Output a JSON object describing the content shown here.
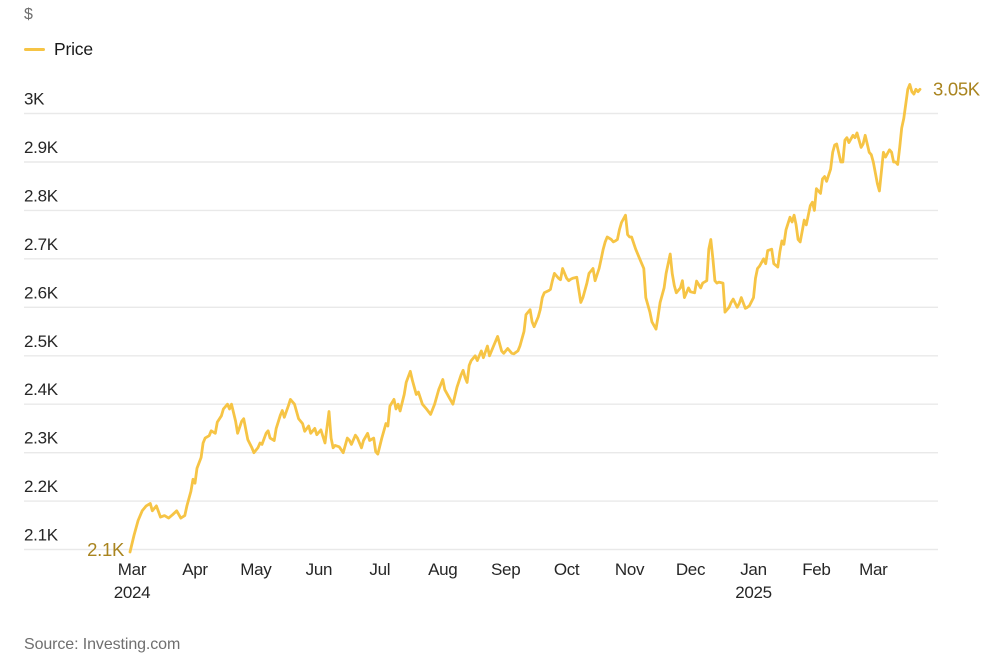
{
  "header": {
    "unit_label": "$"
  },
  "footer": {
    "source": "Source: Investing.com"
  },
  "chart_data": {
    "type": "line",
    "title": "",
    "series_name": "Price",
    "unit": "$ thousands (K)",
    "line_color": "#F6C445",
    "annotation_color": "#a9841f",
    "grid": "horizontal",
    "legend_position": "top-left",
    "start_annotation": "2.1K",
    "end_annotation": "3.05K",
    "xlim": [
      "2024-02-29",
      "2025-03-24"
    ],
    "ylim_gridlines": [
      2.1,
      3.0
    ],
    "y_ticks": [
      {
        "label": "3K",
        "value": 3.0
      },
      {
        "label": "2.9K",
        "value": 2.9
      },
      {
        "label": "2.8K",
        "value": 2.8
      },
      {
        "label": "2.7K",
        "value": 2.7
      },
      {
        "label": "2.6K",
        "value": 2.6
      },
      {
        "label": "2.5K",
        "value": 2.5
      },
      {
        "label": "2.4K",
        "value": 2.4
      },
      {
        "label": "2.3K",
        "value": 2.3
      },
      {
        "label": "2.2K",
        "value": 2.2
      },
      {
        "label": "2.1K",
        "value": 2.1
      }
    ],
    "x_ticks": [
      {
        "label": "Mar",
        "year": "2024",
        "date": "2024-03-01"
      },
      {
        "label": "Apr",
        "date": "2024-04-01"
      },
      {
        "label": "May",
        "date": "2024-05-01"
      },
      {
        "label": "Jun",
        "date": "2024-06-01"
      },
      {
        "label": "Jul",
        "date": "2024-07-01"
      },
      {
        "label": "Aug",
        "date": "2024-08-01"
      },
      {
        "label": "Sep",
        "date": "2024-09-01"
      },
      {
        "label": "Oct",
        "date": "2024-10-01"
      },
      {
        "label": "Nov",
        "date": "2024-11-01"
      },
      {
        "label": "Dec",
        "date": "2024-12-01"
      },
      {
        "label": "Jan",
        "year": "2025",
        "date": "2025-01-01"
      },
      {
        "label": "Feb",
        "date": "2025-02-01"
      },
      {
        "label": "Mar",
        "date": "2025-03-01"
      }
    ],
    "points": [
      [
        "2024-02-29",
        2.095
      ],
      [
        "2024-03-02",
        2.13
      ],
      [
        "2024-03-04",
        2.16
      ],
      [
        "2024-03-06",
        2.18
      ],
      [
        "2024-03-08",
        2.19
      ],
      [
        "2024-03-10",
        2.195
      ],
      [
        "2024-03-11",
        2.18
      ],
      [
        "2024-03-13",
        2.19
      ],
      [
        "2024-03-15",
        2.167
      ],
      [
        "2024-03-17",
        2.17
      ],
      [
        "2024-03-19",
        2.165
      ],
      [
        "2024-03-21",
        2.172
      ],
      [
        "2024-03-23",
        2.18
      ],
      [
        "2024-03-25",
        2.165
      ],
      [
        "2024-03-27",
        2.17
      ],
      [
        "2024-03-28",
        2.19
      ],
      [
        "2024-03-30",
        2.22
      ],
      [
        "2024-03-31",
        2.245
      ],
      [
        "2024-04-01",
        2.237
      ],
      [
        "2024-04-02",
        2.268
      ],
      [
        "2024-04-04",
        2.29
      ],
      [
        "2024-04-05",
        2.32
      ],
      [
        "2024-04-06",
        2.33
      ],
      [
        "2024-04-08",
        2.335
      ],
      [
        "2024-04-09",
        2.345
      ],
      [
        "2024-04-11",
        2.34
      ],
      [
        "2024-04-12",
        2.363
      ],
      [
        "2024-04-14",
        2.376
      ],
      [
        "2024-04-15",
        2.39
      ],
      [
        "2024-04-17",
        2.4
      ],
      [
        "2024-04-18",
        2.39
      ],
      [
        "2024-04-19",
        2.4
      ],
      [
        "2024-04-21",
        2.365
      ],
      [
        "2024-04-22",
        2.34
      ],
      [
        "2024-04-24",
        2.365
      ],
      [
        "2024-04-25",
        2.37
      ],
      [
        "2024-04-27",
        2.327
      ],
      [
        "2024-04-29",
        2.31
      ],
      [
        "2024-04-30",
        2.3
      ],
      [
        "2024-05-02",
        2.31
      ],
      [
        "2024-05-03",
        2.32
      ],
      [
        "2024-05-04",
        2.317
      ],
      [
        "2024-05-06",
        2.34
      ],
      [
        "2024-05-07",
        2.345
      ],
      [
        "2024-05-08",
        2.33
      ],
      [
        "2024-05-10",
        2.325
      ],
      [
        "2024-05-11",
        2.35
      ],
      [
        "2024-05-13",
        2.377
      ],
      [
        "2024-05-14",
        2.387
      ],
      [
        "2024-05-15",
        2.373
      ],
      [
        "2024-05-17",
        2.397
      ],
      [
        "2024-05-18",
        2.41
      ],
      [
        "2024-05-20",
        2.4
      ],
      [
        "2024-05-22",
        2.37
      ],
      [
        "2024-05-24",
        2.36
      ],
      [
        "2024-05-25",
        2.344
      ],
      [
        "2024-05-27",
        2.355
      ],
      [
        "2024-05-28",
        2.34
      ],
      [
        "2024-05-30",
        2.35
      ],
      [
        "2024-05-31",
        2.337
      ],
      [
        "2024-06-02",
        2.347
      ],
      [
        "2024-06-04",
        2.32
      ],
      [
        "2024-06-06",
        2.385
      ],
      [
        "2024-06-07",
        2.33
      ],
      [
        "2024-06-08",
        2.31
      ],
      [
        "2024-06-09",
        2.315
      ],
      [
        "2024-06-11",
        2.312
      ],
      [
        "2024-06-13",
        2.3
      ],
      [
        "2024-06-15",
        2.33
      ],
      [
        "2024-06-16",
        2.326
      ],
      [
        "2024-06-17",
        2.317
      ],
      [
        "2024-06-19",
        2.336
      ],
      [
        "2024-06-20",
        2.33
      ],
      [
        "2024-06-22",
        2.31
      ],
      [
        "2024-06-23",
        2.325
      ],
      [
        "2024-06-25",
        2.34
      ],
      [
        "2024-06-26",
        2.325
      ],
      [
        "2024-06-28",
        2.33
      ],
      [
        "2024-06-29",
        2.302
      ],
      [
        "2024-06-30",
        2.297
      ],
      [
        "2024-07-02",
        2.33
      ],
      [
        "2024-07-03",
        2.345
      ],
      [
        "2024-07-04",
        2.36
      ],
      [
        "2024-07-05",
        2.355
      ],
      [
        "2024-07-06",
        2.396
      ],
      [
        "2024-07-08",
        2.41
      ],
      [
        "2024-07-09",
        2.39
      ],
      [
        "2024-07-10",
        2.4
      ],
      [
        "2024-07-11",
        2.386
      ],
      [
        "2024-07-13",
        2.42
      ],
      [
        "2024-07-14",
        2.445
      ],
      [
        "2024-07-16",
        2.468
      ],
      [
        "2024-07-17",
        2.45
      ],
      [
        "2024-07-19",
        2.42
      ],
      [
        "2024-07-20",
        2.425
      ],
      [
        "2024-07-22",
        2.4
      ],
      [
        "2024-07-24",
        2.39
      ],
      [
        "2024-07-26",
        2.379
      ],
      [
        "2024-07-28",
        2.4
      ],
      [
        "2024-07-30",
        2.43
      ],
      [
        "2024-08-01",
        2.451
      ],
      [
        "2024-08-02",
        2.43
      ],
      [
        "2024-08-04",
        2.415
      ],
      [
        "2024-08-06",
        2.4
      ],
      [
        "2024-08-08",
        2.435
      ],
      [
        "2024-08-10",
        2.46
      ],
      [
        "2024-08-11",
        2.47
      ],
      [
        "2024-08-12",
        2.455
      ],
      [
        "2024-08-13",
        2.445
      ],
      [
        "2024-08-14",
        2.48
      ],
      [
        "2024-08-15",
        2.49
      ],
      [
        "2024-08-17",
        2.5
      ],
      [
        "2024-08-18",
        2.49
      ],
      [
        "2024-08-20",
        2.51
      ],
      [
        "2024-08-21",
        2.496
      ],
      [
        "2024-08-23",
        2.52
      ],
      [
        "2024-08-24",
        2.5
      ],
      [
        "2024-08-26",
        2.52
      ],
      [
        "2024-08-27",
        2.53
      ],
      [
        "2024-08-28",
        2.54
      ],
      [
        "2024-08-30",
        2.51
      ],
      [
        "2024-08-31",
        2.505
      ],
      [
        "2024-09-02",
        2.515
      ],
      [
        "2024-09-04",
        2.505
      ],
      [
        "2024-09-05",
        2.504
      ],
      [
        "2024-09-07",
        2.51
      ],
      [
        "2024-09-08",
        2.52
      ],
      [
        "2024-09-10",
        2.55
      ],
      [
        "2024-09-11",
        2.585
      ],
      [
        "2024-09-13",
        2.595
      ],
      [
        "2024-09-14",
        2.57
      ],
      [
        "2024-09-15",
        2.56
      ],
      [
        "2024-09-17",
        2.58
      ],
      [
        "2024-09-18",
        2.595
      ],
      [
        "2024-09-19",
        2.62
      ],
      [
        "2024-09-20",
        2.63
      ],
      [
        "2024-09-22",
        2.634
      ],
      [
        "2024-09-23",
        2.637
      ],
      [
        "2024-09-24",
        2.655
      ],
      [
        "2024-09-25",
        2.67
      ],
      [
        "2024-09-27",
        2.66
      ],
      [
        "2024-09-28",
        2.657
      ],
      [
        "2024-09-29",
        2.68
      ],
      [
        "2024-10-01",
        2.66
      ],
      [
        "2024-10-02",
        2.655
      ],
      [
        "2024-10-03",
        2.658
      ],
      [
        "2024-10-04",
        2.66
      ],
      [
        "2024-10-06",
        2.662
      ],
      [
        "2024-10-08",
        2.61
      ],
      [
        "2024-10-09",
        2.62
      ],
      [
        "2024-10-11",
        2.65
      ],
      [
        "2024-10-12",
        2.67
      ],
      [
        "2024-10-13",
        2.675
      ],
      [
        "2024-10-14",
        2.68
      ],
      [
        "2024-10-15",
        2.655
      ],
      [
        "2024-10-17",
        2.68
      ],
      [
        "2024-10-18",
        2.7
      ],
      [
        "2024-10-19",
        2.72
      ],
      [
        "2024-10-20",
        2.735
      ],
      [
        "2024-10-21",
        2.745
      ],
      [
        "2024-10-23",
        2.74
      ],
      [
        "2024-10-24",
        2.735
      ],
      [
        "2024-10-25",
        2.737
      ],
      [
        "2024-10-26",
        2.74
      ],
      [
        "2024-10-27",
        2.76
      ],
      [
        "2024-10-28",
        2.775
      ],
      [
        "2024-10-30",
        2.79
      ],
      [
        "2024-10-31",
        2.75
      ],
      [
        "2024-11-01",
        2.745
      ],
      [
        "2024-11-02",
        2.745
      ],
      [
        "2024-11-04",
        2.72
      ],
      [
        "2024-11-06",
        2.7
      ],
      [
        "2024-11-08",
        2.68
      ],
      [
        "2024-11-09",
        2.62
      ],
      [
        "2024-11-11",
        2.59
      ],
      [
        "2024-11-12",
        2.57
      ],
      [
        "2024-11-14",
        2.555
      ],
      [
        "2024-11-15",
        2.58
      ],
      [
        "2024-11-16",
        2.61
      ],
      [
        "2024-11-18",
        2.64
      ],
      [
        "2024-11-19",
        2.67
      ],
      [
        "2024-11-21",
        2.71
      ],
      [
        "2024-11-22",
        2.67
      ],
      [
        "2024-11-23",
        2.645
      ],
      [
        "2024-11-24",
        2.63
      ],
      [
        "2024-11-26",
        2.64
      ],
      [
        "2024-11-27",
        2.655
      ],
      [
        "2024-11-28",
        2.62
      ],
      [
        "2024-11-30",
        2.64
      ],
      [
        "2024-12-01",
        2.632
      ],
      [
        "2024-12-03",
        2.63
      ],
      [
        "2024-12-04",
        2.654
      ],
      [
        "2024-12-06",
        2.64
      ],
      [
        "2024-12-07",
        2.65
      ],
      [
        "2024-12-09",
        2.655
      ],
      [
        "2024-12-10",
        2.72
      ],
      [
        "2024-12-11",
        2.74
      ],
      [
        "2024-12-12",
        2.7
      ],
      [
        "2024-12-13",
        2.655
      ],
      [
        "2024-12-14",
        2.65
      ],
      [
        "2024-12-15",
        2.652
      ],
      [
        "2024-12-17",
        2.65
      ],
      [
        "2024-12-18",
        2.59
      ],
      [
        "2024-12-20",
        2.6
      ],
      [
        "2024-12-21",
        2.61
      ],
      [
        "2024-12-22",
        2.617
      ],
      [
        "2024-12-24",
        2.6
      ],
      [
        "2024-12-25",
        2.608
      ],
      [
        "2024-12-26",
        2.62
      ],
      [
        "2024-12-28",
        2.598
      ],
      [
        "2024-12-29",
        2.6
      ],
      [
        "2024-12-30",
        2.603
      ],
      [
        "2025-01-01",
        2.62
      ],
      [
        "2025-01-02",
        2.66
      ],
      [
        "2025-01-03",
        2.68
      ],
      [
        "2025-01-04",
        2.685
      ],
      [
        "2025-01-06",
        2.7
      ],
      [
        "2025-01-07",
        2.69
      ],
      [
        "2025-01-08",
        2.717
      ],
      [
        "2025-01-10",
        2.72
      ],
      [
        "2025-01-11",
        2.69
      ],
      [
        "2025-01-13",
        2.683
      ],
      [
        "2025-01-14",
        2.715
      ],
      [
        "2025-01-15",
        2.737
      ],
      [
        "2025-01-16",
        2.73
      ],
      [
        "2025-01-17",
        2.76
      ],
      [
        "2025-01-19",
        2.786
      ],
      [
        "2025-01-20",
        2.776
      ],
      [
        "2025-01-21",
        2.79
      ],
      [
        "2025-01-22",
        2.77
      ],
      [
        "2025-01-23",
        2.74
      ],
      [
        "2025-01-24",
        2.735
      ],
      [
        "2025-01-25",
        2.757
      ],
      [
        "2025-01-26",
        2.78
      ],
      [
        "2025-01-27",
        2.77
      ],
      [
        "2025-01-29",
        2.81
      ],
      [
        "2025-01-30",
        2.817
      ],
      [
        "2025-01-31",
        2.8
      ],
      [
        "2025-02-01",
        2.845
      ],
      [
        "2025-02-03",
        2.835
      ],
      [
        "2025-02-04",
        2.865
      ],
      [
        "2025-02-05",
        2.87
      ],
      [
        "2025-02-06",
        2.86
      ],
      [
        "2025-02-08",
        2.885
      ],
      [
        "2025-02-09",
        2.92
      ],
      [
        "2025-02-10",
        2.935
      ],
      [
        "2025-02-11",
        2.937
      ],
      [
        "2025-02-13",
        2.9
      ],
      [
        "2025-02-14",
        2.9
      ],
      [
        "2025-02-15",
        2.945
      ],
      [
        "2025-02-16",
        2.95
      ],
      [
        "2025-02-17",
        2.94
      ],
      [
        "2025-02-19",
        2.955
      ],
      [
        "2025-02-20",
        2.95
      ],
      [
        "2025-02-21",
        2.96
      ],
      [
        "2025-02-23",
        2.93
      ],
      [
        "2025-02-24",
        2.937
      ],
      [
        "2025-02-25",
        2.955
      ],
      [
        "2025-02-27",
        2.92
      ],
      [
        "2025-02-28",
        2.915
      ],
      [
        "2025-03-01",
        2.9
      ],
      [
        "2025-03-03",
        2.855
      ],
      [
        "2025-03-04",
        2.84
      ],
      [
        "2025-03-05",
        2.88
      ],
      [
        "2025-03-06",
        2.92
      ],
      [
        "2025-03-07",
        2.91
      ],
      [
        "2025-03-09",
        2.925
      ],
      [
        "2025-03-10",
        2.92
      ],
      [
        "2025-03-11",
        2.9
      ],
      [
        "2025-03-12",
        2.9
      ],
      [
        "2025-03-13",
        2.895
      ],
      [
        "2025-03-14",
        2.93
      ],
      [
        "2025-03-15",
        2.97
      ],
      [
        "2025-03-16",
        2.99
      ],
      [
        "2025-03-17",
        3.02
      ],
      [
        "2025-03-18",
        3.05
      ],
      [
        "2025-03-19",
        3.06
      ],
      [
        "2025-03-20",
        3.045
      ],
      [
        "2025-03-21",
        3.04
      ],
      [
        "2025-03-22",
        3.05
      ],
      [
        "2025-03-23",
        3.045
      ],
      [
        "2025-03-24",
        3.05
      ]
    ]
  }
}
